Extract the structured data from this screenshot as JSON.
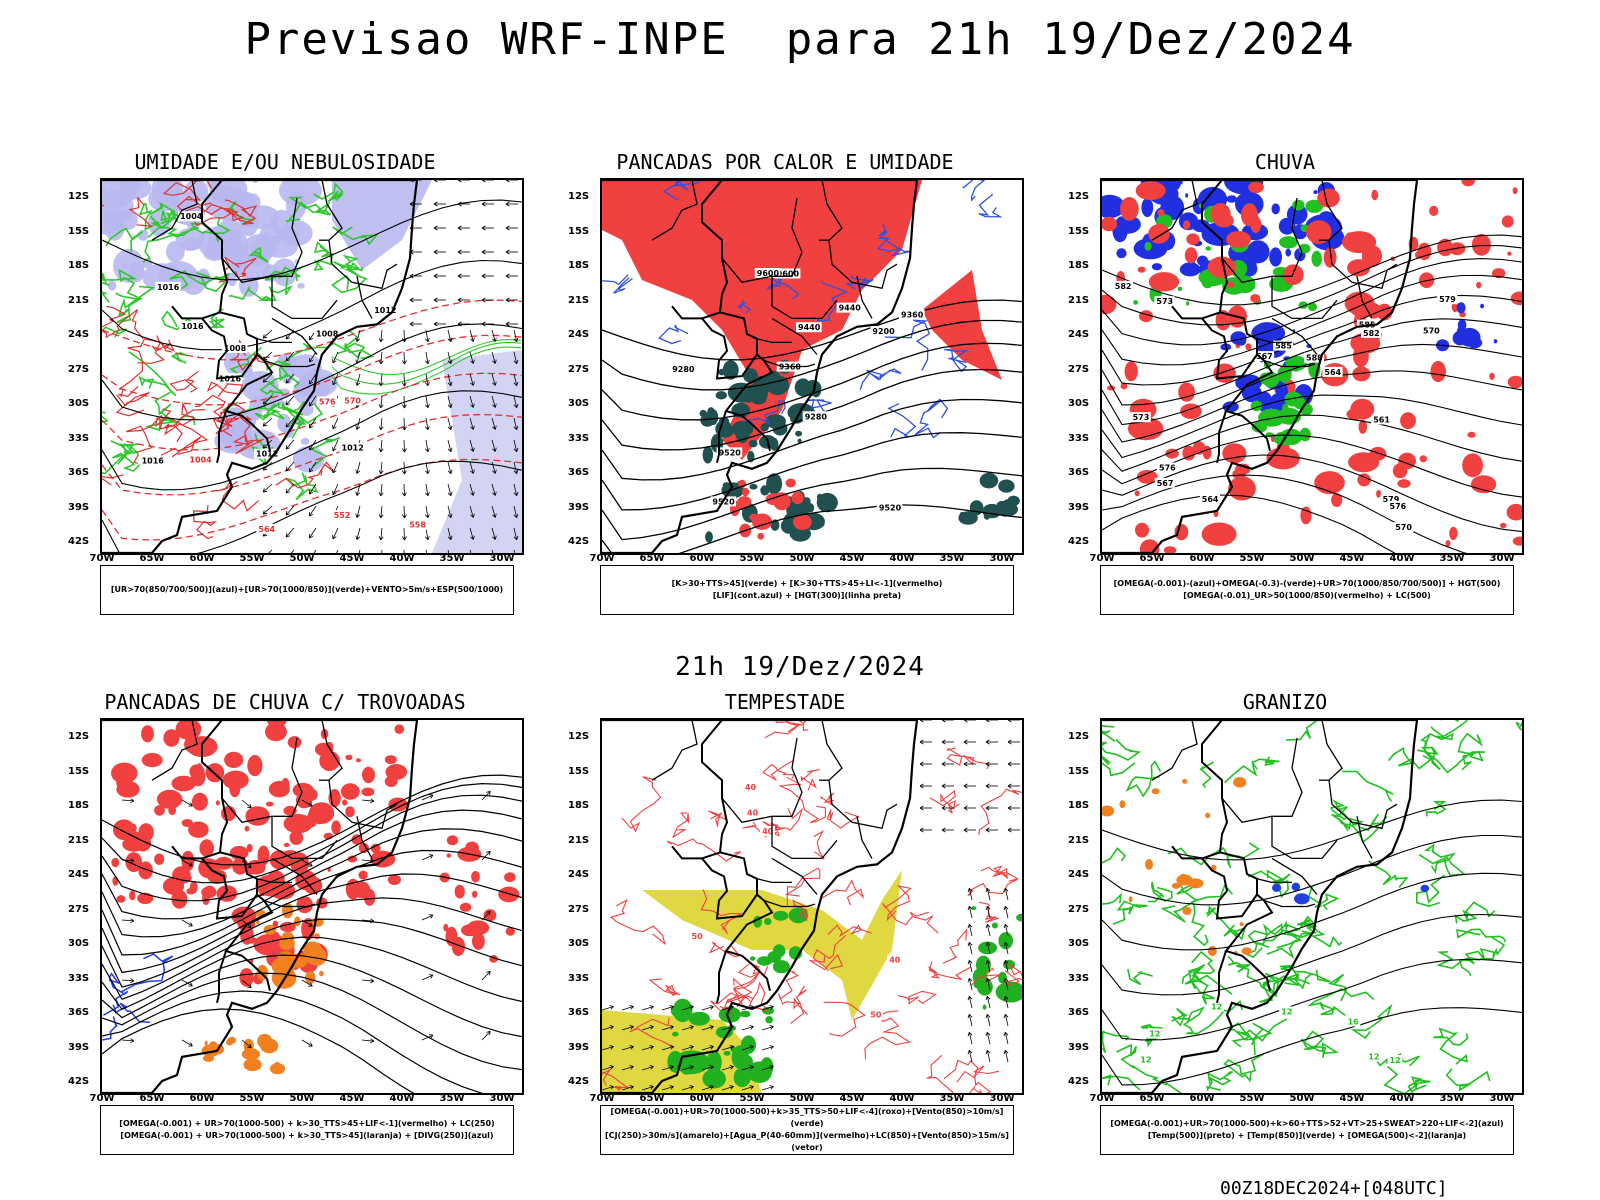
{
  "header": {
    "title": "Previsao WRF-INPE  para 21h 19/Dez/2024",
    "subtitle": "21h 19/Dez/2024",
    "run_info": "00Z18DEC2024+[048UTC]"
  },
  "axes": {
    "lat_labels": [
      "12S",
      "15S",
      "18S",
      "21S",
      "24S",
      "27S",
      "30S",
      "33S",
      "36S",
      "39S",
      "42S"
    ],
    "lon_labels": [
      "70W",
      "65W",
      "60W",
      "55W",
      "50W",
      "45W",
      "40W",
      "35W",
      "30W"
    ]
  },
  "panels": [
    {
      "title": "UMIDADE E/OU NEBULOSIDADE",
      "legend_lines": [
        "[UR>70(850/700/500)](azul)+[UR>70(1000/850)](verde)+VENTO>5m/s+ESP(500/1000)"
      ],
      "colors": {
        "fill": "#b8b8f0",
        "line1": "#2ec82e",
        "line2": "#e03030",
        "line3": "#000000"
      },
      "contour_labels": [
        "1012",
        "1012",
        "1008",
        "1016",
        "1016",
        "1008",
        "1012",
        "1004",
        "1016",
        "1016",
        "1004",
        "576",
        "570",
        "564",
        "558",
        "552"
      ]
    },
    {
      "title": "PANCADAS POR CALOR E UMIDADE",
      "legend_lines": [
        "[K>30+TTS>45](verde)  +  [K>30+TTS>45+LI<-1](vermelho)",
        "[LIF](cont.azul)  +  [HGT(300)](linha preta)"
      ],
      "colors": {
        "fill": "#f04040",
        "fill2": "#205050",
        "line1": "#3050e0",
        "line3": "#000000"
      },
      "contour_labels": [
        "9600",
        "9520",
        "9600",
        "9520",
        "9520",
        "9440",
        "9440",
        "9360",
        "9360",
        "9280",
        "9280",
        "9200"
      ]
    },
    {
      "title": "CHUVA",
      "legend_lines": [
        "[OMEGA(-0.001)-(azul)+OMEGA(-0.3)-(verde)+UR>70(1000/850/700/500)]  +  HGT(500)",
        "[OMEGA(-0.01)_UR>50(1000/850)(vermelho)  +  LC(500)"
      ],
      "colors": {
        "fill": "#f04040",
        "fill2": "#2030e0",
        "fill3": "#20c020",
        "line3": "#000000"
      },
      "contour_labels": [
        "585",
        "582",
        "579",
        "576",
        "573",
        "570",
        "567",
        "564",
        "561",
        "588",
        "585",
        "582",
        "579",
        "576",
        "573",
        "570",
        "567",
        "564"
      ]
    },
    {
      "title": "PANCADAS DE CHUVA C/ TROVOADAS",
      "legend_lines": [
        "[OMEGA(-0.001)  +  UR>70(1000-500)  +  k>30_TTS>45+LIF<-1](vermelho)  +  LC(250)",
        "[OMEGA(-0.001)  +  UR>70(1000-500)  +  k>30_TTS>45](laranja)  +  [DIVG(250)](azul)"
      ],
      "colors": {
        "fill": "#f04040",
        "fill2": "#f08020",
        "fill3": "#2040e0",
        "line3": "#000000"
      },
      "contour_labels": []
    },
    {
      "title": "TEMPESTADE",
      "legend_lines": [
        "[OMEGA(-0.001)+UR>70(1000-500)+k>35_TTS>50+LIF<-4](roxo)+[Vento(850)>10m/s](verde)",
        "[CJ(250)>30m/s](amarelo)+[Agua_P(40-60mm)](vermelho)+LC(850)+[Vento(850)>15m/s](vetor)"
      ],
      "colors": {
        "fill": "#e0d840",
        "fill2": "#20b020",
        "line1": "#f04040",
        "line3": "#000000"
      },
      "contour_labels": [
        "50",
        "40",
        "40",
        "50",
        "40",
        "40"
      ]
    },
    {
      "title": "GRANIZO",
      "legend_lines": [
        "[OMEGA(-0.001)+UR>70(1000-500)+k>60+TTS>52+VT>25+SWEAT>220+LIF<-2](azul)",
        "[Temp(500)](preto)  +  [Temp(850)](verde)  +  [OMEGA(500)<-2](laranja)"
      ],
      "colors": {
        "fill": "#f08020",
        "fill2": "#2040e0",
        "line1": "#20c020",
        "line3": "#000000"
      },
      "contour_labels": [
        "12",
        "12",
        "12",
        "12",
        "12",
        "12",
        "16"
      ]
    }
  ],
  "chart_data": {
    "type": "other",
    "title": "Previsao WRF-INPE  para 21h 19/Dez/2024",
    "panel_titles": [
      "UMIDADE E/OU NEBULOSIDADE",
      "PANCADAS POR CALOR E UMIDADE",
      "CHUVA",
      "PANCADAS DE CHUVA C/ TROVOADAS",
      "TEMPESTADE",
      "GRANIZO"
    ],
    "lat_range": [
      -42,
      -12
    ],
    "lon_range": [
      -70,
      -28
    ]
  }
}
